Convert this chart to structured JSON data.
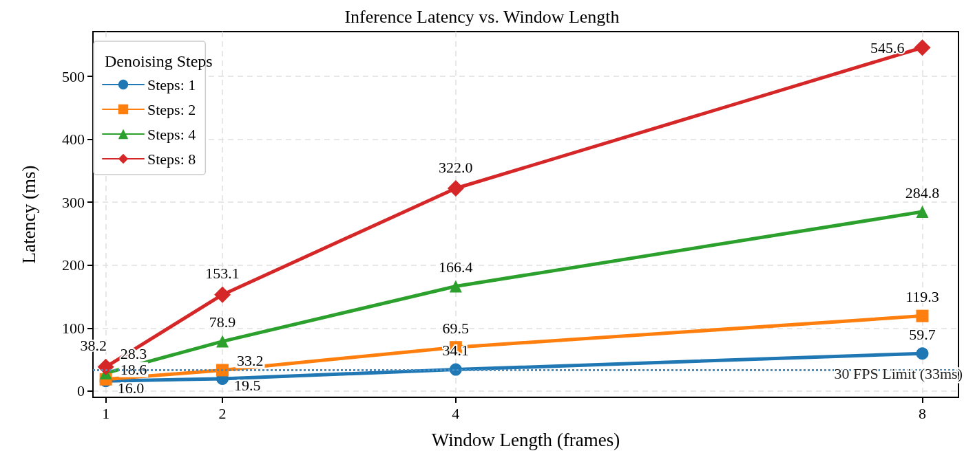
{
  "chart_data": {
    "type": "line",
    "title": "Inference Latency vs. Window Length",
    "xlabel": "Window Length (frames)",
    "ylabel": "Latency (ms)",
    "legend_title": "Denoising Steps",
    "x": [
      1,
      2,
      4,
      8
    ],
    "series": [
      {
        "name": "Steps: 1",
        "color": "#1f77b4",
        "marker": "circle",
        "values": [
          16.0,
          19.5,
          34.1,
          59.7
        ],
        "value_labels": [
          "16.0",
          "19.5",
          "34.1",
          "59.7"
        ]
      },
      {
        "name": "Steps: 2",
        "color": "#ff7f0e",
        "marker": "square",
        "values": [
          18.6,
          33.2,
          69.5,
          119.3
        ],
        "value_labels": [
          "18.6",
          "33.2",
          "69.5",
          "119.3"
        ]
      },
      {
        "name": "Steps: 4",
        "color": "#2ca02c",
        "marker": "triangle",
        "values": [
          28.3,
          78.9,
          166.4,
          284.8
        ],
        "value_labels": [
          "28.3",
          "78.9",
          "166.4",
          "284.8"
        ]
      },
      {
        "name": "Steps: 8",
        "color": "#d62728",
        "marker": "diamond",
        "values": [
          38.2,
          153.1,
          322.0,
          545.6
        ],
        "value_labels": [
          "38.2",
          "153.1",
          "322.0",
          "545.6"
        ]
      }
    ],
    "xlim": [
      0.89,
      8.31
    ],
    "xticks": [
      1,
      2,
      4,
      8
    ],
    "ylim": [
      -10,
      571
    ],
    "yticks": [
      0,
      100,
      200,
      300,
      400,
      500
    ],
    "ref_lines": [
      {
        "axis": "y",
        "value": 33,
        "label": "30 FPS Limit (33ms)",
        "color": "#4a8fc4",
        "line_style": "dotted"
      }
    ],
    "grid": true,
    "legend": "top left",
    "line_style": "solid"
  }
}
